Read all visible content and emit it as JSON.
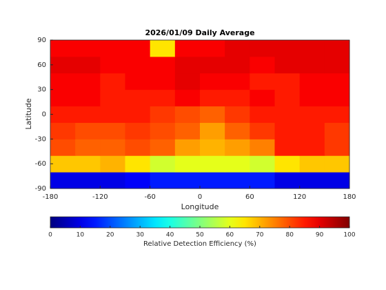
{
  "chart_data": {
    "type": "heatmap",
    "title": "2026/01/09 Daily Average",
    "x_label": "Longitude",
    "y_label": "Latitude",
    "xlim": [
      -180,
      180
    ],
    "ylim": [
      -90,
      90
    ],
    "xticks": [
      -180,
      -120,
      -60,
      0,
      60,
      120,
      180
    ],
    "yticks": [
      -90,
      -60,
      -30,
      0,
      30,
      60,
      90
    ],
    "x": [
      -165,
      -135,
      -105,
      -75,
      -45,
      -15,
      15,
      45,
      75,
      105,
      135,
      165
    ],
    "y": [
      -80,
      -60,
      -40,
      -20,
      0,
      20,
      40,
      60,
      80
    ],
    "z": [
      [
        10,
        10,
        10,
        12,
        15,
        15,
        15,
        15,
        15,
        10,
        10,
        10
      ],
      [
        68,
        68,
        70,
        65,
        58,
        60,
        60,
        60,
        58,
        65,
        68,
        68
      ],
      [
        80,
        78,
        78,
        80,
        78,
        72,
        70,
        72,
        75,
        85,
        85,
        82
      ],
      [
        82,
        80,
        80,
        82,
        80,
        78,
        72,
        78,
        82,
        85,
        85,
        82
      ],
      [
        85,
        85,
        85,
        85,
        82,
        80,
        78,
        82,
        85,
        85,
        85,
        85
      ],
      [
        88,
        88,
        85,
        85,
        85,
        88,
        85,
        85,
        88,
        85,
        88,
        88
      ],
      [
        88,
        88,
        85,
        88,
        88,
        90,
        88,
        88,
        85,
        85,
        88,
        88
      ],
      [
        90,
        90,
        88,
        88,
        88,
        90,
        90,
        90,
        88,
        90,
        90,
        90
      ],
      [
        88,
        88,
        88,
        88,
        65,
        88,
        88,
        90,
        90,
        90,
        90,
        90
      ]
    ],
    "colormap": "jet",
    "clim": [
      0,
      100
    ],
    "cticks": [
      0,
      10,
      20,
      30,
      40,
      50,
      60,
      70,
      80,
      90,
      100
    ],
    "colorbar_label": "Relative Detection Efficiency (%)"
  }
}
